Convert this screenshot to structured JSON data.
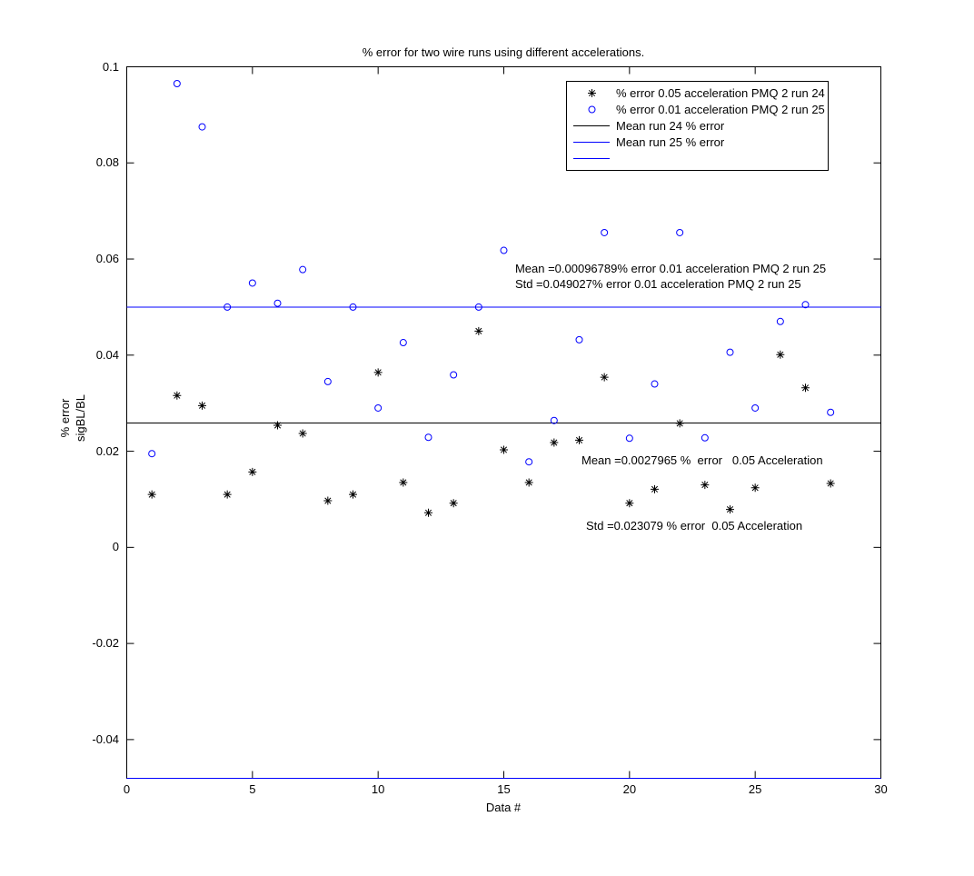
{
  "figure": {
    "title": "% error for two wire runs using different accelerations.",
    "xlabel": "Data #",
    "ylabel_line1": "% error",
    "ylabel_line2": "sigBL/BL"
  },
  "chart_data": {
    "type": "scatter",
    "title": "% error for two wire runs using different accelerations.",
    "xlabel": "Data #",
    "ylabel": "% error sigBL/BL",
    "xlim": [
      0,
      30
    ],
    "ylim": [
      -0.048059,
      0.1
    ],
    "xticks": [
      0,
      5,
      10,
      15,
      20,
      25,
      30
    ],
    "xtick_labels": [
      "0",
      "5",
      "10",
      "15",
      "20",
      "25",
      "30"
    ],
    "yticks": [
      0.1,
      0.08,
      0.06,
      0.04,
      0.02,
      0,
      -0.02,
      -0.04
    ],
    "ytick_labels": [
      "0.1",
      "0.08",
      "0.06",
      "0.04",
      "0.02",
      "0",
      "-0.02",
      "-0.04"
    ],
    "grid": false,
    "legend_position": "top-right-inside",
    "colors": {
      "run24": "#000000",
      "run25": "#0000ff"
    },
    "x": [
      1,
      2,
      3,
      4,
      5,
      6,
      7,
      8,
      9,
      10,
      11,
      12,
      13,
      14,
      15,
      16,
      17,
      18,
      19,
      20,
      21,
      22,
      23,
      24,
      25,
      26,
      27,
      28
    ],
    "series": [
      {
        "name": "% error 0.05 acceleration PMQ 2 run 24",
        "marker": "asterisk",
        "color": "#000000",
        "values": [
          0.011,
          0.0316,
          0.0295,
          0.011,
          0.0157,
          0.0254,
          0.0237,
          0.0097,
          0.011,
          0.0364,
          0.0135,
          0.0072,
          0.0092,
          0.045,
          0.0203,
          0.0135,
          0.0218,
          0.0223,
          0.0354,
          0.0092,
          0.0121,
          0.0258,
          0.013,
          0.0079,
          0.0124,
          0.0401,
          0.0332,
          0.0133
        ]
      },
      {
        "name": "% error 0.01 acceleration PMQ 2 run 25",
        "marker": "circle",
        "color": "#0000ff",
        "values": [
          0.0195,
          0.0965,
          0.0875,
          0.05,
          0.055,
          0.0508,
          0.0578,
          0.0345,
          0.05,
          0.029,
          0.0426,
          0.0229,
          0.0359,
          0.05,
          0.0618,
          0.0178,
          0.0264,
          0.0432,
          0.0655,
          0.0227,
          0.034,
          0.0655,
          0.0228,
          0.0406,
          0.029,
          0.047,
          0.0505,
          0.0281
        ]
      }
    ],
    "mean_lines": [
      {
        "label": "Mean run 24 % error",
        "value": 0.0258755,
        "color": "#000000"
      },
      {
        "label": "Mean run 25 % error",
        "value": 0.0499949,
        "color": "#0000ff"
      },
      {
        "label": "",
        "value": -0.048059,
        "color": "#0000ff"
      }
    ],
    "stats": {
      "run25_mean": "0.00096789",
      "run25_std": "0.049027",
      "run24_mean": "0.0027965",
      "run24_std": "0.023079"
    },
    "legend_entries": [
      {
        "marker": "asterisk",
        "color": "#000000",
        "label": "% error 0.05 acceleration PMQ 2 run 24"
      },
      {
        "marker": "circle",
        "color": "#0000ff",
        "label": "% error 0.01 acceleration PMQ 2 run 25"
      },
      {
        "marker": "line",
        "color": "#000000",
        "label": "Mean run 24 % error"
      },
      {
        "marker": "line",
        "color": "#0000ff",
        "label": "Mean run 25 % error"
      },
      {
        "marker": "line",
        "color": "#0000ff",
        "label": ""
      }
    ],
    "annotations": [
      {
        "text": "Mean =0.00096789% error 0.01 acceleration PMQ 2 run 25",
        "x": 15.45,
        "y": 0.0579
      },
      {
        "text": "Std =0.049027% error 0.01 acceleration PMQ 2 run 25",
        "x": 15.45,
        "y": 0.0547
      },
      {
        "text": "Mean =0.0027965 %  error   0.05 Acceleration",
        "x": 18.09,
        "y": 0.018
      },
      {
        "text": "Std =0.023079 % error  0.05 Acceleration",
        "x": 18.27,
        "y": 0.0044
      }
    ]
  }
}
